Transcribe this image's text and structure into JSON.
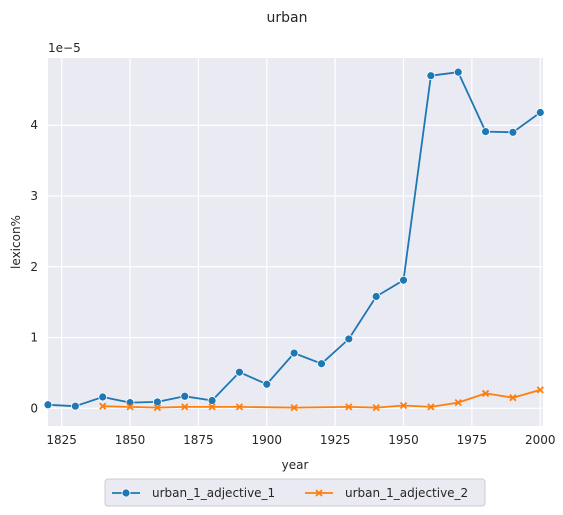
{
  "chart_data": {
    "type": "line",
    "title": "urban",
    "xlabel": "year",
    "ylabel": "lexicon%",
    "y_offset_label": "1e−5",
    "xlim": [
      1820,
      2001
    ],
    "ylim": [
      -0.25,
      4.95
    ],
    "xticks": [
      1825,
      1850,
      1875,
      1900,
      1925,
      1950,
      1975,
      2000
    ],
    "xtick_labels": [
      "1825",
      "1850",
      "1875",
      "1900",
      "1925",
      "1950",
      "1975",
      "2000"
    ],
    "yticks": [
      0,
      1,
      2,
      3,
      4
    ],
    "ytick_labels": [
      "0",
      "1",
      "2",
      "3",
      "4"
    ],
    "grid": true,
    "legend_position": "bottom-center",
    "series": [
      {
        "name": "urban_1_adjective_1",
        "color": "#1f77b4",
        "marker": "circle",
        "x": [
          1820,
          1830,
          1840,
          1850,
          1860,
          1870,
          1880,
          1890,
          1900,
          1910,
          1920,
          1930,
          1940,
          1950,
          1960,
          1970,
          1980,
          1990,
          2000
        ],
        "y": [
          0.05,
          0.03,
          0.16,
          0.08,
          0.09,
          0.17,
          0.11,
          0.51,
          0.34,
          0.78,
          0.63,
          0.98,
          1.58,
          1.81,
          4.7,
          4.75,
          3.91,
          3.9,
          4.18
        ]
      },
      {
        "name": "urban_1_adjective_2",
        "color": "#ff7f0e",
        "marker": "x",
        "x": [
          1840,
          1850,
          1860,
          1870,
          1880,
          1890,
          1910,
          1930,
          1940,
          1950,
          1960,
          1970,
          1980,
          1990,
          2000
        ],
        "y": [
          0.03,
          0.02,
          0.01,
          0.02,
          0.02,
          0.02,
          0.01,
          0.02,
          0.01,
          0.04,
          0.02,
          0.08,
          0.21,
          0.15,
          0.26
        ]
      }
    ]
  }
}
